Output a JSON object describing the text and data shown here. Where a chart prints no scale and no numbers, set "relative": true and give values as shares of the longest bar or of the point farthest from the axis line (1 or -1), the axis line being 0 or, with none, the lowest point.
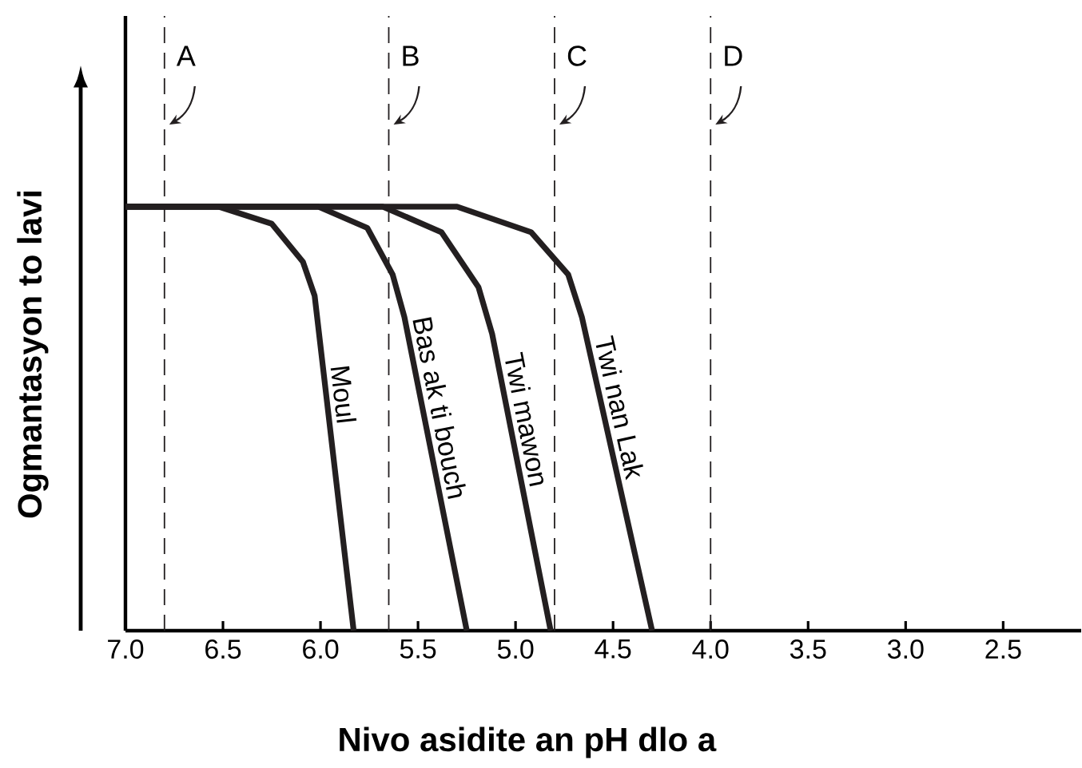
{
  "chart_data": {
    "type": "line",
    "xlabel": "Nivo asidite an pH dlo a",
    "ylabel": "Ogmantasyon to lavi",
    "relative": true,
    "xlim": [
      7.0,
      2.1
    ],
    "xticks": [
      {
        "value": 7.0,
        "label": "7.0"
      },
      {
        "value": 6.5,
        "label": "6.5"
      },
      {
        "value": 6.0,
        "label": "6.0"
      },
      {
        "value": 5.5,
        "label": "5.5"
      },
      {
        "value": 5.0,
        "label": "5.0"
      },
      {
        "value": 4.5,
        "label": "4.5"
      },
      {
        "value": 4.0,
        "label": "4.0"
      },
      {
        "value": 3.5,
        "label": "3.5"
      },
      {
        "value": 3.0,
        "label": "3.0"
      },
      {
        "value": 2.5,
        "label": "2.5"
      }
    ],
    "series": [
      {
        "name": "Moul",
        "color": "#231f20",
        "x": [
          7.0,
          6.52,
          6.25,
          6.09,
          6.03,
          5.83
        ],
        "values": [
          1,
          1,
          0.96,
          0.87,
          0.79,
          0
        ]
      },
      {
        "name": "Bas ak ti bouch",
        "color": "#231f20",
        "x": [
          7.0,
          6.01,
          5.76,
          5.63,
          5.57,
          5.25
        ],
        "values": [
          1,
          1,
          0.95,
          0.84,
          0.74,
          0
        ]
      },
      {
        "name": "Twi mawon",
        "color": "#231f20",
        "x": [
          7.0,
          5.68,
          5.38,
          5.19,
          5.12,
          4.82
        ],
        "values": [
          1,
          1,
          0.94,
          0.81,
          0.7,
          0
        ]
      },
      {
        "name": "Twi nan Lak",
        "color": "#231f20",
        "x": [
          7.0,
          5.3,
          4.92,
          4.73,
          4.66,
          4.3
        ],
        "values": [
          1,
          1,
          0.94,
          0.84,
          0.74,
          0
        ]
      }
    ],
    "ref_lines": [
      {
        "axis": "x",
        "value": 6.8,
        "label": "A",
        "line_style": "dashed"
      },
      {
        "axis": "x",
        "value": 5.65,
        "label": "B",
        "line_style": "dashed"
      },
      {
        "axis": "x",
        "value": 4.8,
        "label": "C",
        "line_style": "dashed"
      },
      {
        "axis": "x",
        "value": 4.0,
        "label": "D",
        "line_style": "dashed"
      }
    ]
  }
}
